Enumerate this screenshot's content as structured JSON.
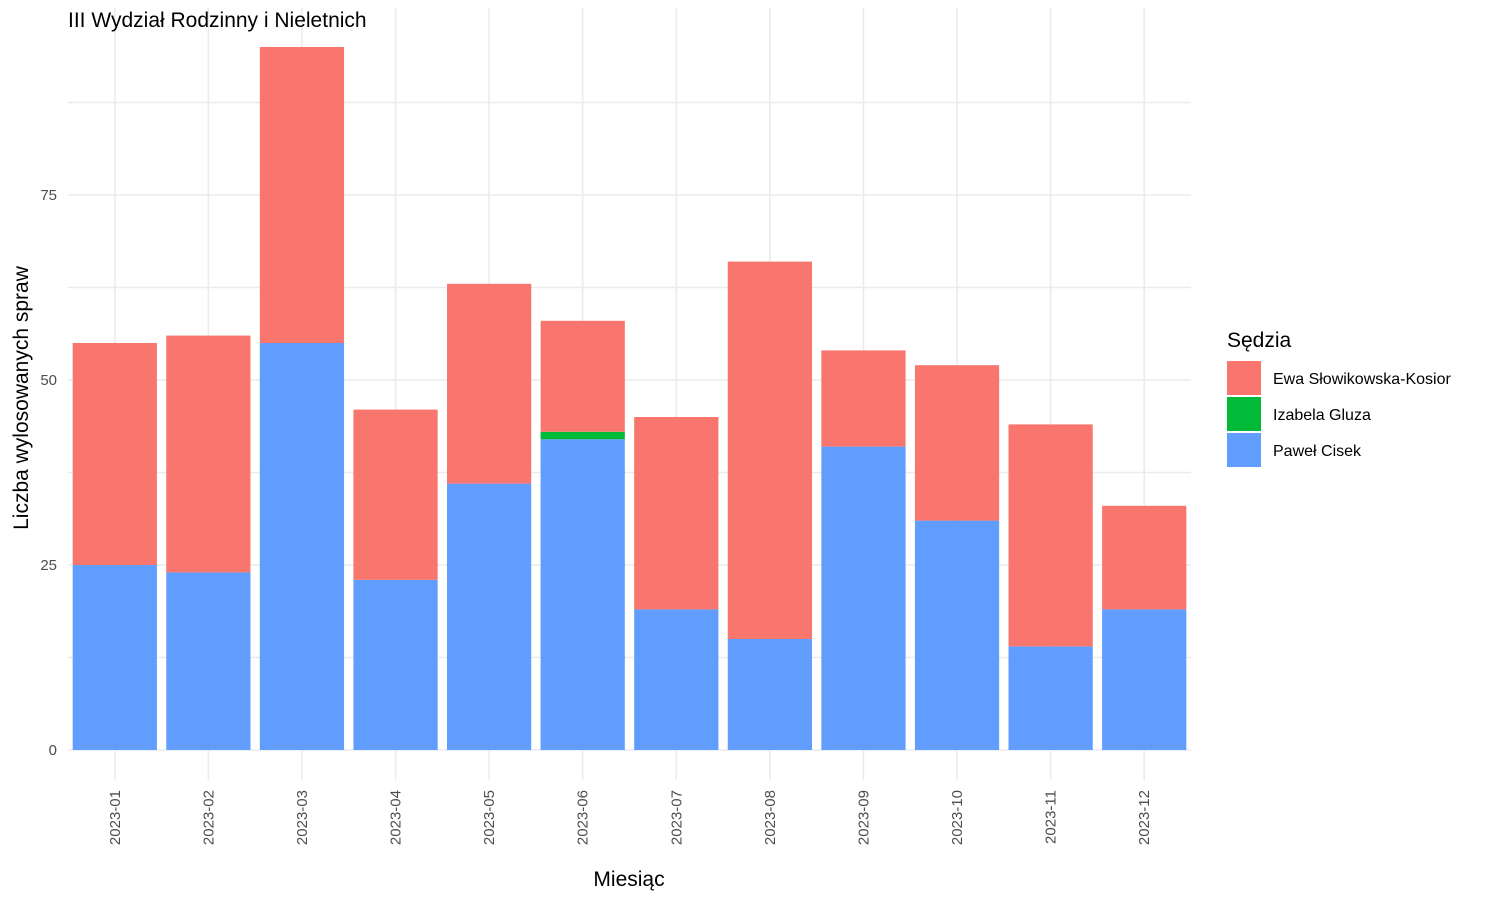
{
  "chart_data": {
    "type": "bar",
    "stacked": true,
    "title": "III Wydział Rodzinny i Nieletnich",
    "xlabel": "Miesiąc",
    "ylabel": "Liczba wylosowanych spraw",
    "ylim": [
      0,
      100
    ],
    "yticks": [
      0,
      25,
      50,
      75
    ],
    "grid": true,
    "legend": {
      "title": "Sędzia",
      "placement": "right",
      "entries": [
        "Ewa Słowikowska-Kosior",
        "Izabela Gluza",
        "Paweł Cisek"
      ]
    },
    "categories": [
      "2023-01",
      "2023-02",
      "2023-03",
      "2023-04",
      "2023-05",
      "2023-06",
      "2023-07",
      "2023-08",
      "2023-09",
      "2023-10",
      "2023-11",
      "2023-12"
    ],
    "series": [
      {
        "name": "Paweł Cisek",
        "color": "#619CFF",
        "values": [
          25,
          24,
          55,
          23,
          36,
          42,
          19,
          15,
          41,
          31,
          14,
          19
        ]
      },
      {
        "name": "Izabela Gluza",
        "color": "#00BA38",
        "values": [
          0,
          0,
          0,
          0,
          0,
          1,
          0,
          0,
          0,
          0,
          0,
          0
        ]
      },
      {
        "name": "Ewa Słowikowska-Kosior",
        "color": "#F8766D",
        "values": [
          30,
          32,
          40,
          23,
          27,
          15,
          26,
          51,
          13,
          21,
          30,
          14
        ]
      }
    ]
  }
}
